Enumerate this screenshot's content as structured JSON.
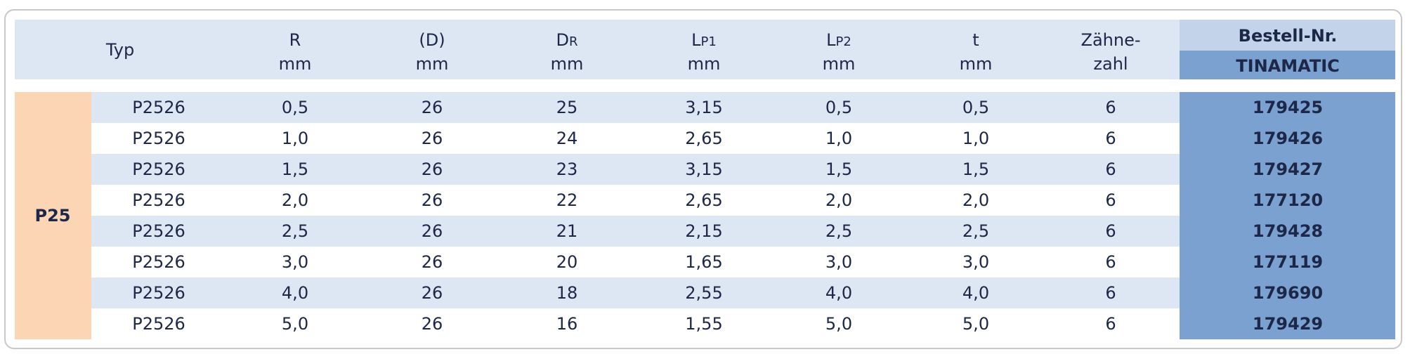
{
  "table": {
    "columns": [
      {
        "line1": "Typ"
      },
      {
        "line1": "R",
        "line2": "mm"
      },
      {
        "line1": "(D)",
        "line2": "mm"
      },
      {
        "line1": "D",
        "sub": "R",
        "line2": "mm"
      },
      {
        "line1": "L",
        "sub": "P1",
        "line2": "mm"
      },
      {
        "line1": "L",
        "sub": "P2",
        "line2": "mm"
      },
      {
        "line1": "t",
        "line2": "mm"
      },
      {
        "line1": "Zähne-",
        "line2": "zahl"
      },
      {
        "line1": "Bestell-Nr.",
        "line2": "TINAMATIC"
      }
    ],
    "group": "P25",
    "rows": [
      [
        "P2526",
        "0,5",
        "26",
        "25",
        "3,15",
        "0,5",
        "0,5",
        "6",
        "179425"
      ],
      [
        "P2526",
        "1,0",
        "26",
        "24",
        "2,65",
        "1,0",
        "1,0",
        "6",
        "179426"
      ],
      [
        "P2526",
        "1,5",
        "26",
        "23",
        "3,15",
        "1,5",
        "1,5",
        "6",
        "179427"
      ],
      [
        "P2526",
        "2,0",
        "26",
        "22",
        "2,65",
        "2,0",
        "2,0",
        "6",
        "177120"
      ],
      [
        "P2526",
        "2,5",
        "26",
        "21",
        "2,15",
        "2,5",
        "2,5",
        "6",
        "179428"
      ],
      [
        "P2526",
        "3,0",
        "26",
        "20",
        "1,65",
        "3,0",
        "3,0",
        "6",
        "177119"
      ],
      [
        "P2526",
        "4,0",
        "26",
        "18",
        "2,55",
        "4,0",
        "4,0",
        "6",
        "179690"
      ],
      [
        "P2526",
        "5,0",
        "26",
        "16",
        "1,55",
        "5,0",
        "5,0",
        "6",
        "179429"
      ]
    ]
  }
}
